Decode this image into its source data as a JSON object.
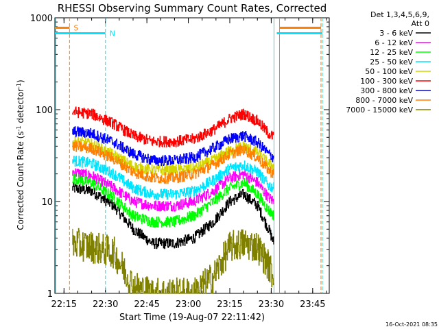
{
  "chart_data": {
    "type": "line",
    "title": "RHESSI Observing Summary Count Rates, Corrected",
    "xlabel": "Start Time (19-Aug-07 22:11:42)",
    "ylabel_main": "Corrected Count Rate (s",
    "ylabel_sup1": "-1",
    "ylabel_mid": " detector",
    "ylabel_sup2": "-1",
    "ylabel_end": ")",
    "y_scale": "log",
    "ylim": [
      1,
      1000
    ],
    "xlim": [
      "22:11:42",
      "23:51:00"
    ],
    "x_ticks": [
      "22:15",
      "22:30",
      "22:45",
      "23:00",
      "23:15",
      "23:30",
      "23:45"
    ],
    "y_ticks": [
      "1",
      "10",
      "100",
      "1000"
    ],
    "legend_header": [
      "Det 1,3,4,5,6,9,",
      "Att 0"
    ],
    "legend_position": "right",
    "footer": "16-Oct-2021 08:35",
    "markers": [
      {
        "label": "S",
        "time": "22:17:00",
        "color": "#ff7f00",
        "style": "dashed",
        "span_start": "22:11:42",
        "span_end": "22:17:00",
        "y": 780
      },
      {
        "label": "N",
        "time": "22:30:00",
        "color": "#00e5ff",
        "style": "dashed",
        "span_start": "22:11:42",
        "span_end": "22:30:00",
        "y": 680
      },
      {
        "label": "",
        "time": "23:31:00",
        "color": "#00e5ff",
        "style": "solid"
      },
      {
        "label": "",
        "time": "23:33:00",
        "color": "#ff7f00",
        "style": "solid",
        "span_start": "23:33:00",
        "span_end": "23:48:00",
        "y": 780
      },
      {
        "label": "",
        "time": "23:48:00",
        "color": "#ff7f00",
        "style": "dashed"
      },
      {
        "label": "",
        "time": "23:48:30",
        "color": "#00e5ff",
        "style": "dashed",
        "span_start": "23:32:00",
        "span_end": "23:48:30",
        "y": 680
      },
      {
        "label": "",
        "time": "22:12:00",
        "color": "#00e5ff",
        "style": "solid"
      }
    ],
    "time_grid": [
      "22:19",
      "22:25",
      "22:35",
      "22:45",
      "22:55",
      "23:05",
      "23:15",
      "23:25",
      "23:30"
    ],
    "series": [
      {
        "name": "3 - 6 keV",
        "color": "#000000",
        "values": [
          14,
          13,
          9,
          5,
          3.5,
          3.5,
          4,
          6,
          10,
          12,
          9,
          5,
          3.5
        ]
      },
      {
        "name": "6 - 12 keV",
        "color": "#ff00ff",
        "values": [
          21,
          19,
          14,
          10,
          9,
          9,
          10,
          13,
          18,
          20,
          16,
          11,
          10
        ]
      },
      {
        "name": "12 - 25 keV",
        "color": "#00ff00",
        "values": [
          18,
          16,
          11,
          7,
          6,
          6,
          7,
          10,
          14,
          16,
          12,
          8,
          7
        ]
      },
      {
        "name": "25 - 50 keV",
        "color": "#00e5ff",
        "values": [
          28,
          26,
          20,
          14,
          12,
          12,
          13,
          17,
          23,
          25,
          21,
          15,
          14
        ]
      },
      {
        "name": "50 - 100 keV",
        "color": "#d4d400",
        "values": [
          45,
          42,
          32,
          24,
          22,
          22,
          23,
          28,
          36,
          40,
          34,
          26,
          24
        ]
      },
      {
        "name": "100 - 300 keV",
        "color": "#ff0000",
        "values": [
          95,
          90,
          70,
          52,
          45,
          45,
          48,
          60,
          80,
          90,
          75,
          55,
          50
        ]
      },
      {
        "name": "300 - 800 keV",
        "color": "#0000ff",
        "values": [
          58,
          55,
          44,
          33,
          28,
          28,
          30,
          38,
          48,
          52,
          44,
          33,
          30
        ]
      },
      {
        "name": "800 - 7000 keV",
        "color": "#ff7f00",
        "values": [
          40,
          38,
          29,
          21,
          18,
          18,
          20,
          25,
          33,
          37,
          30,
          22,
          20
        ]
      },
      {
        "name": "7000 - 15000 keV",
        "color": "#808000",
        "values": [
          3.5,
          3.2,
          2.8,
          1.2,
          1,
          1,
          1,
          1.5,
          3.2,
          3.5,
          3.2,
          2,
          1.5
        ]
      }
    ],
    "series_times": [
      "22:18",
      "22:25",
      "22:33",
      "22:40",
      "22:47",
      "22:55",
      "23:02",
      "23:09",
      "23:15",
      "23:20",
      "23:25",
      "23:29",
      "23:31"
    ]
  }
}
